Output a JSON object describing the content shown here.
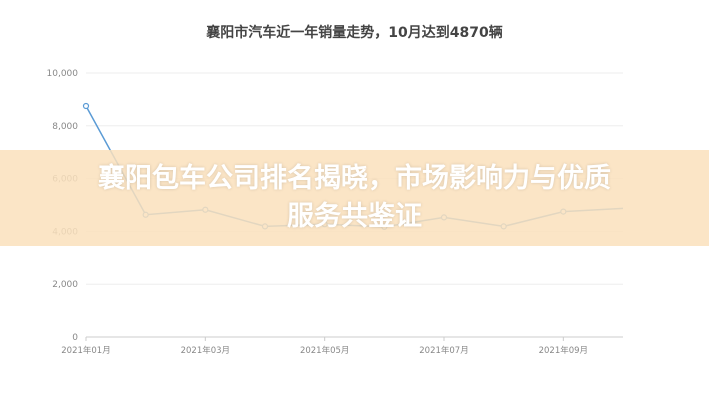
{
  "chart_data": {
    "type": "line",
    "title": "襄阳市汽车近一年销量走势，10月达到4870辆",
    "x": [
      "2021年01月",
      "2021年02月",
      "2021年03月",
      "2021年04月",
      "2021年05月",
      "2021年06月",
      "2021年07月",
      "2021年08月",
      "2021年09月",
      "2021年10月"
    ],
    "xticks": [
      "2021年01月",
      "2021年03月",
      "2021年05月",
      "2021年07月",
      "2021年09月"
    ],
    "values": [
      8750,
      4630,
      4820,
      4190,
      4270,
      4170,
      4530,
      4190,
      4750,
      4870
    ],
    "yticks": [
      "0",
      "2,000",
      "4,000",
      "6,000",
      "8,000",
      "10,000"
    ],
    "ylim": [
      0,
      10000
    ],
    "grid": true,
    "color": "#5b9bd5"
  },
  "banner": {
    "text": "襄阳包车公司排名揭晓，市场影响力与优质服务共鉴证"
  }
}
